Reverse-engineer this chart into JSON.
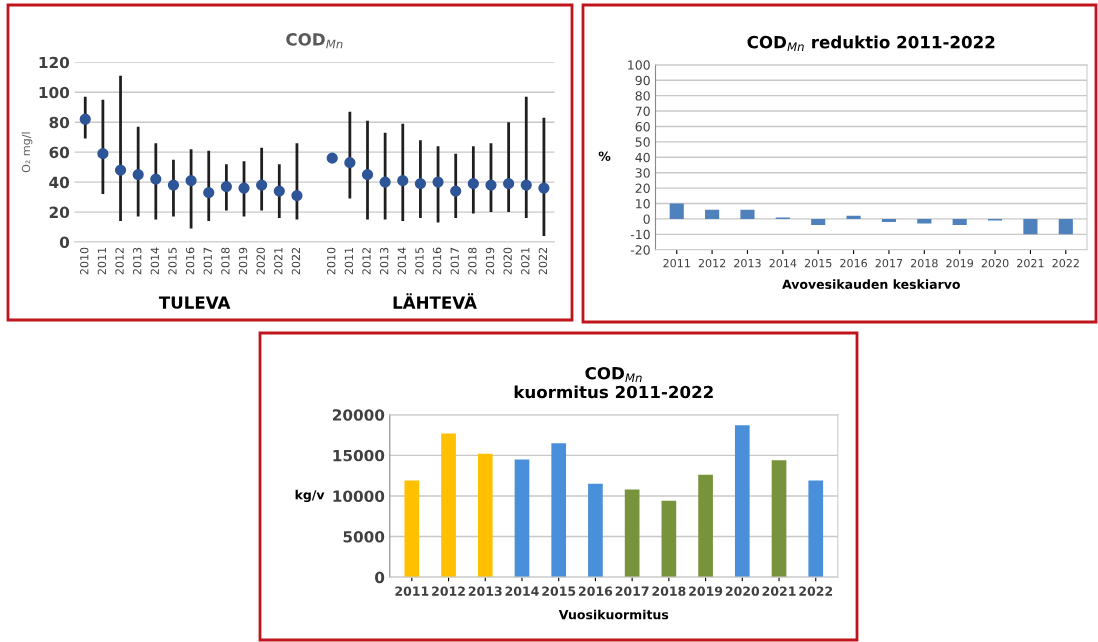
{
  "chart_data": [
    {
      "type": "scatter",
      "title": "COD$_{Mn}$",
      "ylabel": "O₂ mg/l",
      "categories": [
        "2010",
        "2011",
        "2012",
        "2013",
        "2014",
        "2015",
        "2016",
        "2017",
        "2018",
        "2019",
        "2020",
        "2021",
        "2022",
        null,
        "2010",
        "2011",
        "2012",
        "2013",
        "2014",
        "2015",
        "2016",
        "2017",
        "2018",
        "2019",
        "2020",
        "2021",
        "2022"
      ],
      "series": [
        {
          "color": "#2e5597",
          "values": [
            82,
            59,
            48,
            45,
            42,
            38,
            41,
            33,
            37,
            36,
            38,
            34,
            31,
            null,
            56,
            53,
            45,
            40,
            41,
            39,
            40,
            34,
            39,
            38,
            39,
            38,
            36
          ],
          "errors": [
            [
              70,
              96
            ],
            [
              33,
              94
            ],
            [
              15,
              110
            ],
            [
              18,
              76
            ],
            [
              16,
              65
            ],
            [
              18,
              54
            ],
            [
              10,
              61
            ],
            [
              15,
              60
            ],
            [
              22,
              51
            ],
            [
              18,
              53
            ],
            [
              22,
              62
            ],
            [
              17,
              51
            ],
            [
              16,
              65
            ],
            null,
            null,
            [
              30,
              86
            ],
            [
              16,
              80
            ],
            [
              16,
              72
            ],
            [
              15,
              78
            ],
            [
              17,
              67
            ],
            [
              14,
              63
            ],
            [
              17,
              58
            ],
            [
              20,
              63
            ],
            [
              21,
              65
            ],
            [
              21,
              79
            ],
            [
              17,
              96
            ],
            [
              5,
              82
            ]
          ]
        }
      ],
      "marker": "circle",
      "ylim": [
        0,
        120
      ],
      "yticks": [
        0,
        20,
        40,
        60,
        80,
        100,
        120
      ],
      "grid": "y",
      "annotations": [
        "TULEVA",
        "LÄHTEVÄ"
      ]
    },
    {
      "type": "bar",
      "title": "COD$_{Mn}$ reduktio 2011-2022",
      "ylabel": "%",
      "xlabel": "Avovesikauden keskiarvo",
      "categories": [
        "2011",
        "2012",
        "2013",
        "2014",
        "2015",
        "2016",
        "2017",
        "2018",
        "2019",
        "2020",
        "2021",
        "2022"
      ],
      "values": [
        10,
        6,
        6,
        1,
        -4,
        2,
        -2,
        -3,
        -4,
        -1,
        -10,
        -10
      ],
      "color": "#4f81bd",
      "ylim": [
        -20,
        100
      ],
      "yticks": [
        -20,
        -10,
        0,
        10,
        20,
        30,
        40,
        50,
        60,
        70,
        80,
        90,
        100
      ],
      "grid": "y"
    },
    {
      "type": "bar",
      "title": "COD$_{Mn}$\nkuormitus 2011-2022",
      "ylabel": "kg/v",
      "xlabel": "Vuosikuormitus",
      "categories": [
        "2011",
        "2012",
        "2013",
        "2014",
        "2015",
        "2016",
        "2017",
        "2018",
        "2019",
        "2020",
        "2021",
        "2022"
      ],
      "values": [
        11900,
        17700,
        15200,
        14500,
        16500,
        11500,
        10800,
        9400,
        12600,
        18700,
        14400,
        11900
      ],
      "colors": [
        "#ffc000",
        "#ffc000",
        "#ffc000",
        "#4a8fd9",
        "#4a8fd9",
        "#4a8fd9",
        "#77933c",
        "#77933c",
        "#77933c",
        "#4a8fd9",
        "#77933c",
        "#4a8fd9"
      ],
      "ylim": [
        0,
        20000
      ],
      "yticks": [
        0,
        5000,
        10000,
        15000,
        20000
      ],
      "grid": "y"
    }
  ]
}
